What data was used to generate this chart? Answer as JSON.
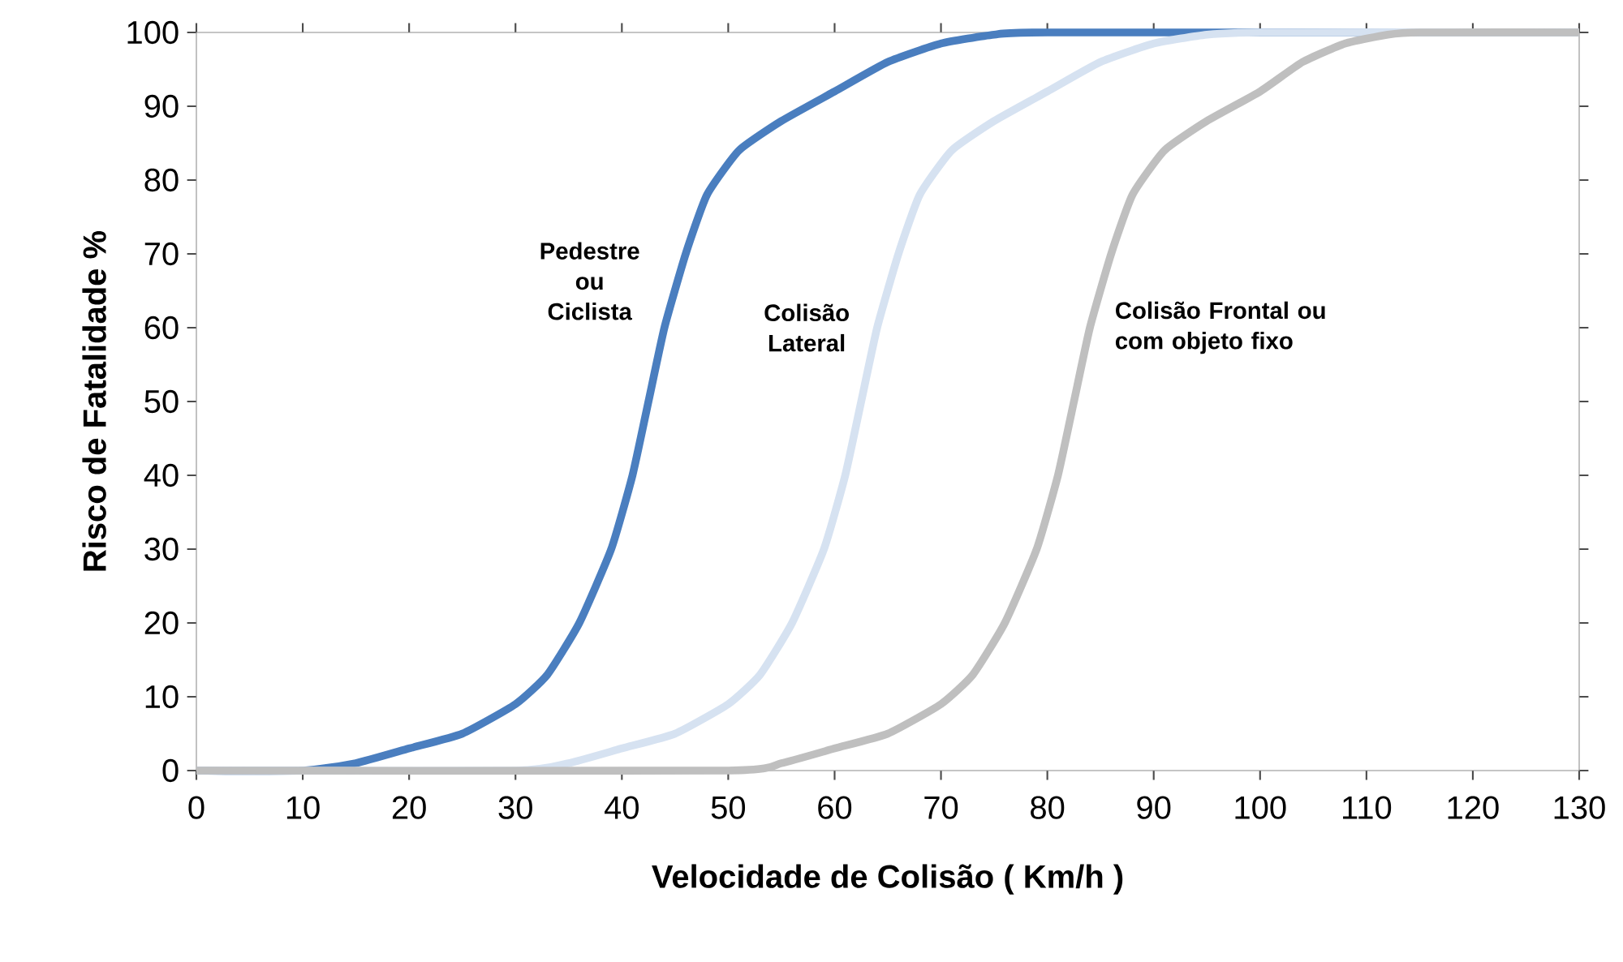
{
  "chart_data": {
    "type": "line",
    "xlabel": "Velocidade de Colisão ( Km/h )",
    "ylabel": "Risco de Fatalidade  %",
    "xlim": [
      0,
      130
    ],
    "ylim": [
      0,
      100
    ],
    "xticks": [
      0,
      10,
      20,
      30,
      40,
      50,
      60,
      70,
      80,
      90,
      100,
      110,
      120,
      130
    ],
    "yticks": [
      0,
      10,
      20,
      30,
      40,
      50,
      60,
      70,
      80,
      90,
      100
    ],
    "grid": false,
    "marker": "none",
    "line_style": "solid",
    "series": [
      {
        "name": "Pedestre ou Ciclista",
        "color": "#4a7ebf",
        "x": [
          0,
          10,
          15,
          20,
          25,
          30,
          33,
          36,
          39,
          41,
          42.5,
          44,
          46,
          48,
          51,
          55,
          60,
          65,
          70,
          75,
          80,
          130
        ],
        "values": [
          0,
          0,
          1,
          3,
          5,
          9,
          13,
          20,
          30,
          40,
          50,
          60,
          70,
          78,
          84,
          88,
          92,
          96,
          98.5,
          99.7,
          100,
          100
        ]
      },
      {
        "name": "Colisão Lateral",
        "color": "#d6e2f1",
        "x": [
          0,
          30,
          35,
          40,
          45,
          50,
          53,
          56,
          59,
          61,
          62.5,
          64,
          66,
          68,
          71,
          75,
          80,
          85,
          90,
          95,
          100,
          130
        ],
        "values": [
          0,
          0,
          1,
          3,
          5,
          9,
          13,
          20,
          30,
          40,
          50,
          60,
          70,
          78,
          84,
          88,
          92,
          96,
          98.5,
          99.7,
          100,
          100
        ]
      },
      {
        "name": "Colisão Frontal ou com objeto fixo",
        "color": "#bfbfbf",
        "x": [
          0,
          50,
          55,
          60,
          65,
          70,
          73,
          76,
          79,
          81,
          82.5,
          84,
          86,
          88,
          91,
          95,
          100,
          104,
          108,
          112,
          115,
          130
        ],
        "values": [
          0,
          0,
          1,
          3,
          5,
          9,
          13,
          20,
          30,
          40,
          50,
          60,
          70,
          78,
          84,
          88,
          92,
          96,
          98.5,
          99.7,
          100,
          100
        ]
      }
    ]
  }
}
